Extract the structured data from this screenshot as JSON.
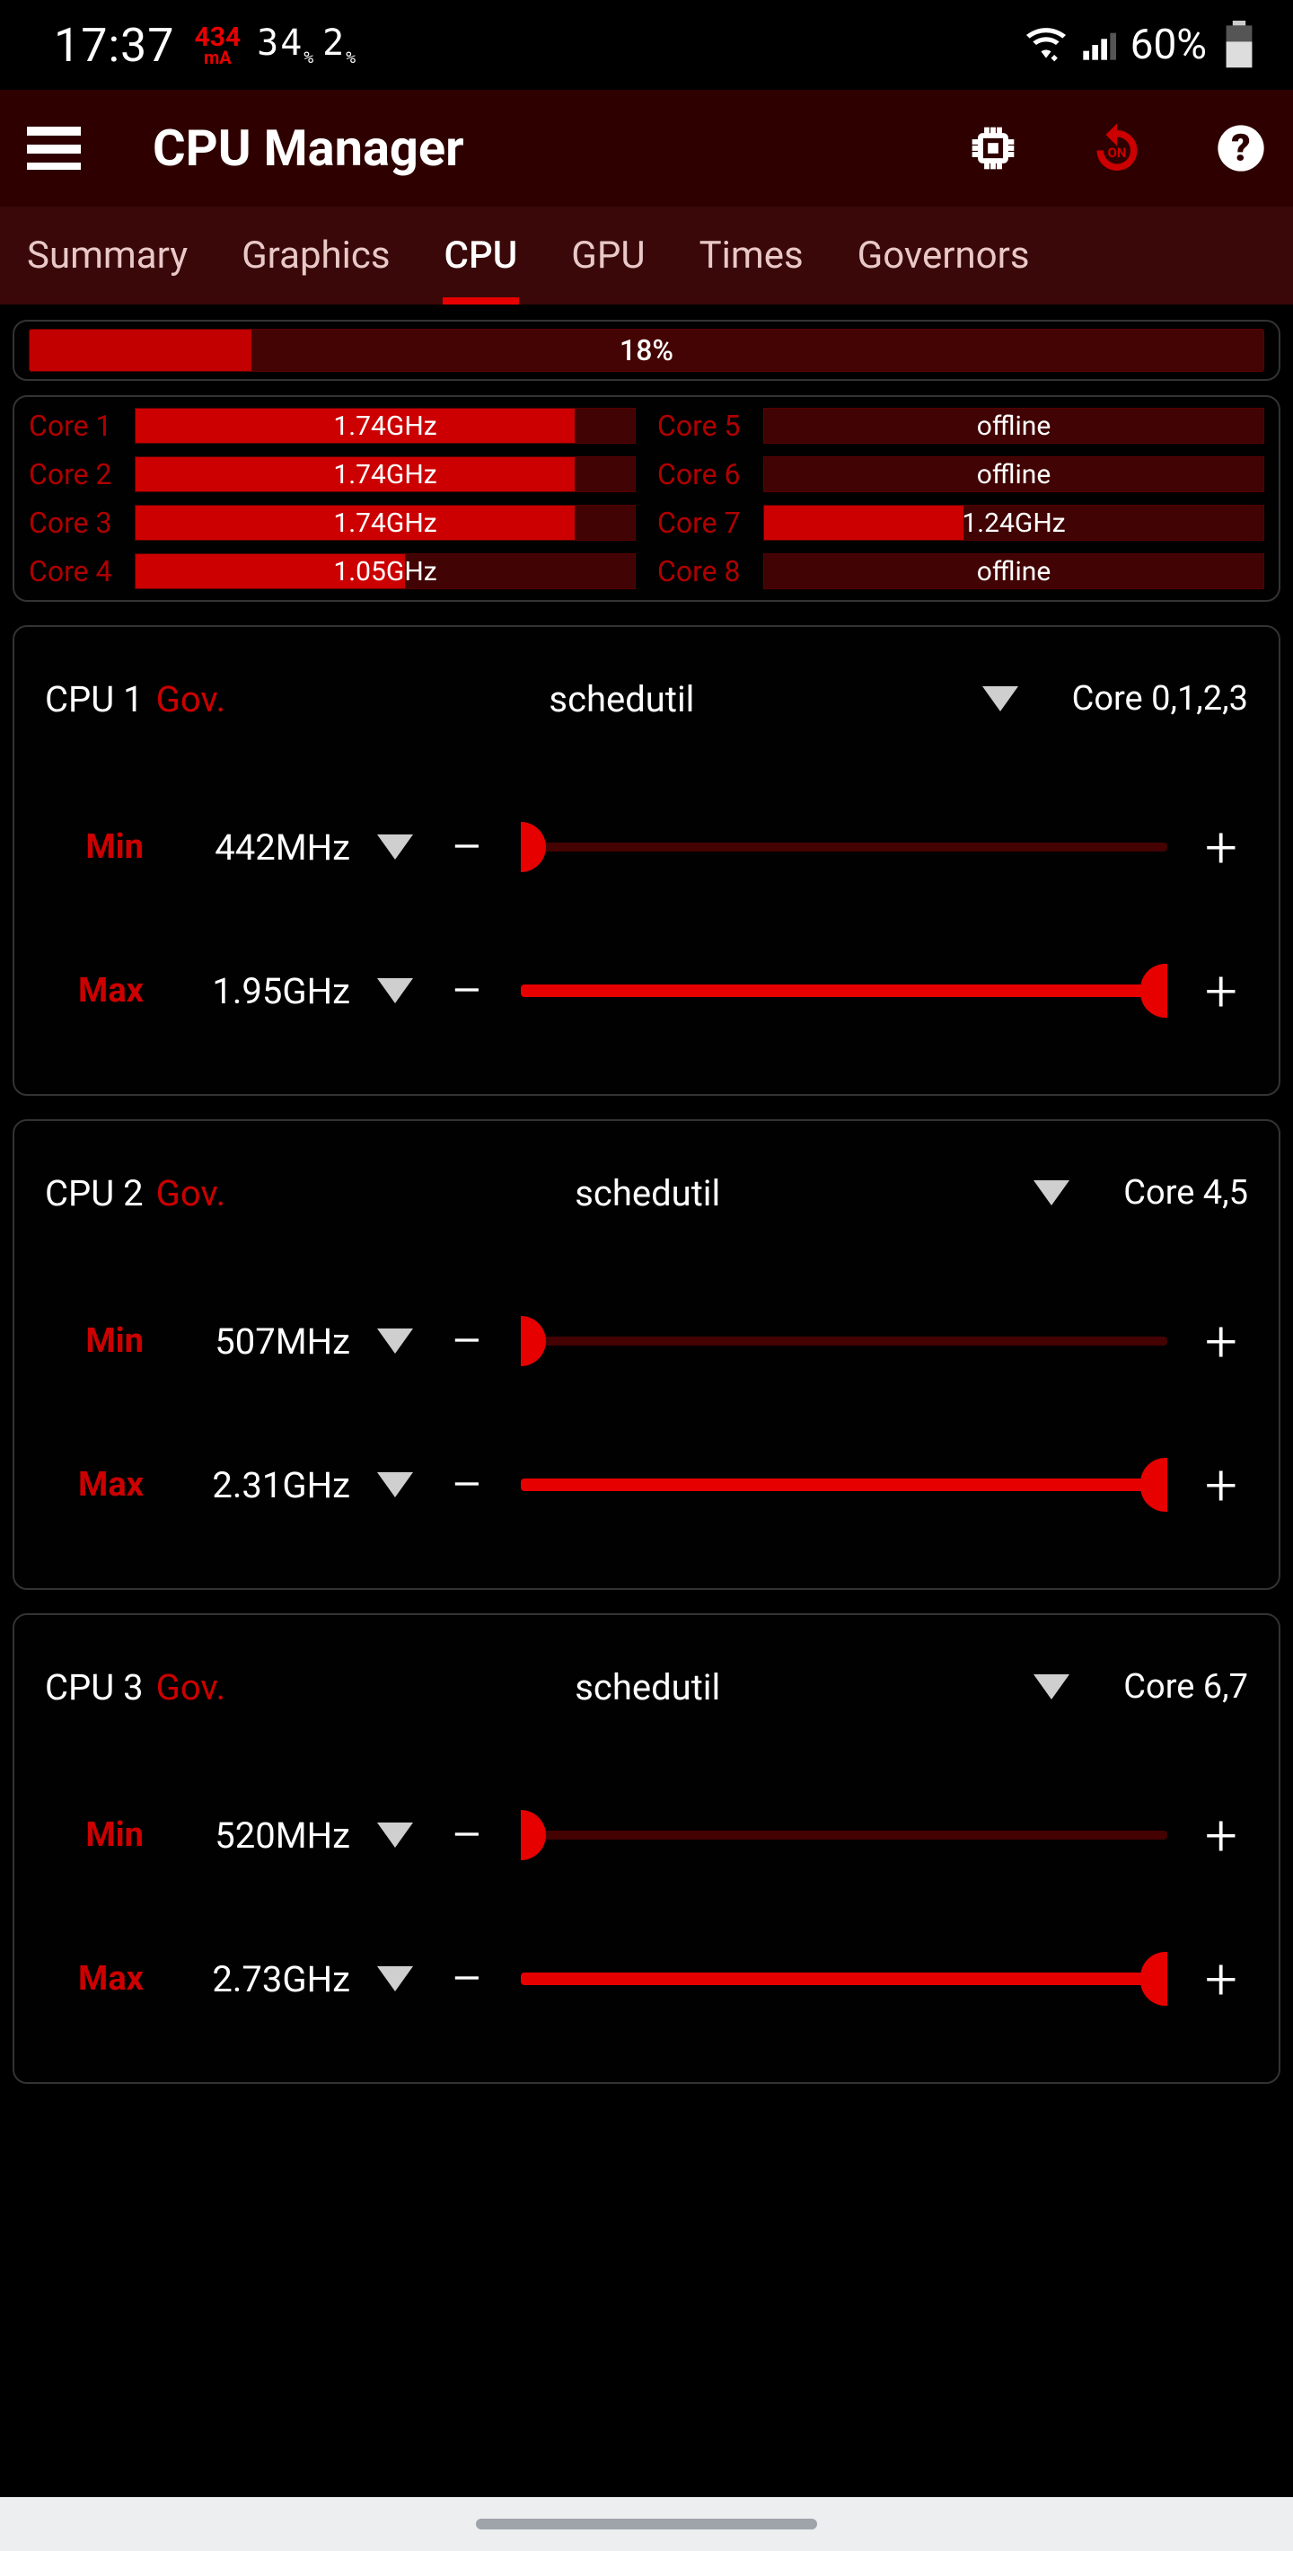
{
  "status": {
    "time": "17:37",
    "current_mA_value": "434",
    "current_mA_unit": "mA",
    "temp1": "34",
    "temp2": "2",
    "battery_pct": "60%"
  },
  "app": {
    "title": "CPU Manager"
  },
  "tabs": [
    "Summary",
    "Graphics",
    "CPU",
    "GPU",
    "Times",
    "Governors"
  ],
  "active_tab_index": 2,
  "usage": {
    "percent": 18,
    "label": "18%"
  },
  "cores_left": [
    {
      "name": "Core 1",
      "text": "1.74GHz",
      "fill": 88
    },
    {
      "name": "Core 2",
      "text": "1.74GHz",
      "fill": 88
    },
    {
      "name": "Core 3",
      "text": "1.74GHz",
      "fill": 88
    },
    {
      "name": "Core 4",
      "text": "1.05GHz",
      "fill": 54
    }
  ],
  "cores_right": [
    {
      "name": "Core 5",
      "text": "offline",
      "fill": 0
    },
    {
      "name": "Core 6",
      "text": "offline",
      "fill": 0
    },
    {
      "name": "Core 7",
      "text": "1.24GHz",
      "fill": 40
    },
    {
      "name": "Core 8",
      "text": "offline",
      "fill": 0
    }
  ],
  "clusters": [
    {
      "name": "CPU 1",
      "gov_label": "Gov.",
      "governor": "schedutil",
      "cores": "Core 0,1,2,3",
      "min_label": "Min",
      "min_value": "442MHz",
      "max_label": "Max",
      "max_value": "1.95GHz"
    },
    {
      "name": "CPU 2",
      "gov_label": "Gov.",
      "governor": "schedutil",
      "cores": "Core 4,5",
      "min_label": "Min",
      "min_value": "507MHz",
      "max_label": "Max",
      "max_value": "2.31GHz"
    },
    {
      "name": "CPU 3",
      "gov_label": "Gov.",
      "governor": "schedutil",
      "cores": "Core 6,7",
      "min_label": "Min",
      "min_value": "520MHz",
      "max_label": "Max",
      "max_value": "2.73GHz"
    }
  ],
  "colors": {
    "accent": "#e60000",
    "bar_bg": "#450404",
    "bar_fill": "#cc0000",
    "panel_border": "#333333"
  }
}
